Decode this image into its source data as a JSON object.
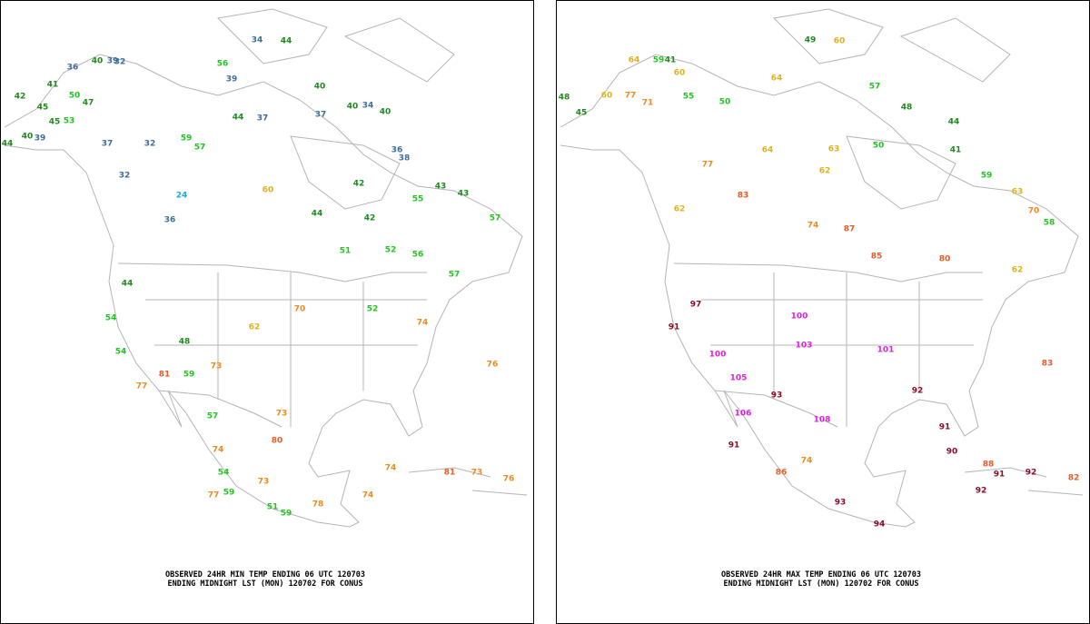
{
  "panels": [
    {
      "caption": [
        "OBSERVED 24HR MIN TEMP ENDING 06 UTC 120703",
        "ENDING MIDNIGHT LST (MON) 120702 FOR CONUS"
      ],
      "values": [
        40,
        39,
        32,
        36,
        41,
        50,
        47,
        42,
        45,
        53,
        45,
        40,
        39,
        44,
        37,
        32,
        32,
        59,
        57,
        44,
        37,
        39,
        34,
        44,
        56,
        40,
        37,
        40,
        34,
        40,
        36,
        38,
        42,
        55,
        43,
        43,
        57,
        24,
        36,
        60,
        44,
        42,
        51,
        52,
        56,
        57,
        44,
        54,
        54,
        48,
        81,
        73,
        62,
        70,
        52,
        74,
        76,
        73,
        74,
        80,
        54,
        59,
        78,
        74,
        74,
        81,
        73,
        76,
        77,
        51,
        59,
        73,
        59,
        77,
        57
      ]
    },
    {
      "caption": [
        "OBSERVED 24HR MAX TEMP ENDING 06 UTC 120703",
        "ENDING MIDNIGHT LST (MON) 120702 FOR CONUS"
      ],
      "values": [
        64,
        59,
        41,
        60,
        48,
        45,
        60,
        77,
        71,
        55,
        50,
        64,
        49,
        60,
        57,
        48,
        44,
        41,
        59,
        63,
        70,
        58,
        50,
        63,
        62,
        64,
        77,
        62,
        83,
        74,
        87,
        85,
        80,
        62,
        97,
        91,
        100,
        105,
        100,
        103,
        101,
        92,
        90,
        91,
        83,
        106,
        91,
        86,
        74,
        93,
        94,
        88,
        92,
        82,
        91,
        92,
        108,
        93
      ]
    }
  ]
}
